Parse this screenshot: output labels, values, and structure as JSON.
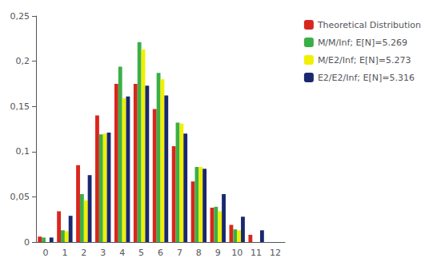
{
  "chart_data": {
    "type": "bar",
    "categories": [
      0,
      1,
      2,
      3,
      4,
      5,
      6,
      7,
      8,
      9,
      10,
      11,
      12
    ],
    "series": [
      {
        "name": "Theoretical Distribution",
        "color": "#d9261c",
        "values": [
          0.006,
          0.034,
          0.085,
          0.14,
          0.175,
          0.175,
          0.147,
          0.106,
          0.067,
          0.038,
          0.019,
          0.008,
          0.0
        ]
      },
      {
        "name": "M/M/Inf; E[N]=5.269",
        "color": "#3baf47",
        "values": [
          0.005,
          0.013,
          0.053,
          0.119,
          0.194,
          0.221,
          0.187,
          0.132,
          0.083,
          0.039,
          0.014,
          0.0,
          0.0
        ]
      },
      {
        "name": "M/E2/Inf; E[N]=5.273",
        "color": "#f0f000",
        "values": [
          0.0,
          0.012,
          0.046,
          0.12,
          0.159,
          0.213,
          0.18,
          0.131,
          0.083,
          0.034,
          0.013,
          0.0,
          0.0
        ]
      },
      {
        "name": "E2/E2/Inf; E[N]=5.316",
        "color": "#1a2870",
        "values": [
          0.005,
          0.029,
          0.074,
          0.121,
          0.161,
          0.173,
          0.162,
          0.12,
          0.081,
          0.053,
          0.028,
          0.013,
          0.0
        ]
      }
    ],
    "ylim": [
      0,
      0.25
    ],
    "yticks": [
      0,
      {
        "value": 0.05,
        "label": "0,05"
      },
      {
        "value": 0.1,
        "label": "0,1"
      },
      {
        "value": 0.15,
        "label": "0,15"
      },
      {
        "value": 0.2,
        "label": "0,2"
      },
      {
        "value": 0.25,
        "label": "0,25"
      }
    ],
    "grid": false,
    "legend": "right"
  }
}
